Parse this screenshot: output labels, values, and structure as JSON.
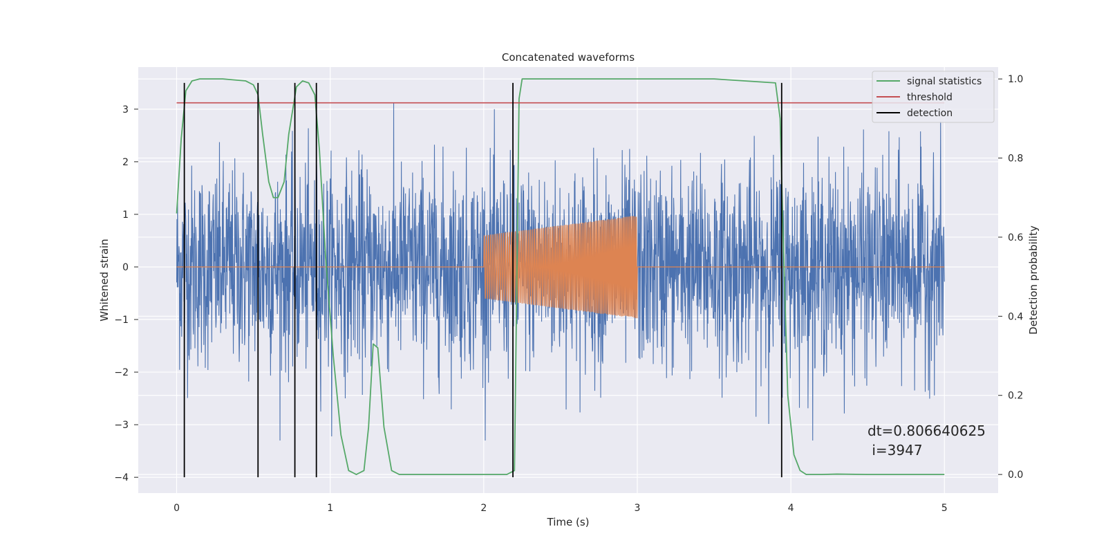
{
  "chart_data": {
    "type": "line",
    "title": "Concatenated waveforms",
    "xlabel": "Time (s)",
    "ylabel_left": "Whitened strain",
    "ylabel_right": "Detection probability",
    "xlim": [
      -0.25,
      5.35
    ],
    "ylim_left": [
      -4.3,
      3.8
    ],
    "ylim_right": [
      -0.047,
      1.03
    ],
    "x_ticks": [
      0,
      1,
      2,
      3,
      4,
      5
    ],
    "x_tick_labels": [
      "0",
      "1",
      "2",
      "3",
      "4",
      "5"
    ],
    "y_left_ticks": [
      -4,
      -3,
      -2,
      -1,
      0,
      1,
      2,
      3
    ],
    "y_left_tick_labels": [
      "−4",
      "−3",
      "−2",
      "−1",
      "0",
      "1",
      "2",
      "3"
    ],
    "y_right_ticks": [
      0.0,
      0.2,
      0.4,
      0.6,
      0.8,
      1.0
    ],
    "y_right_tick_labels": [
      "0.0",
      "0.2",
      "0.4",
      "0.6",
      "0.8",
      "1.0"
    ],
    "grid": true,
    "legend_position": "top-right",
    "series": [
      {
        "name": "",
        "axis": "left",
        "kind": "noise",
        "color": "#4c72b0",
        "x_range": [
          0,
          5
        ],
        "envelope": [
          -3.3,
          3.2
        ]
      },
      {
        "name": "",
        "axis": "left",
        "kind": "chirp",
        "color": "#dd8452",
        "x_range": [
          0,
          5
        ],
        "signal_window": [
          2.0,
          3.0
        ],
        "amplitude_start": 0.6,
        "amplitude_end": 0.98
      },
      {
        "name": "signal statistics",
        "axis": "right",
        "color": "#55a868",
        "x": [
          0.0,
          0.03,
          0.06,
          0.1,
          0.15,
          0.3,
          0.45,
          0.5,
          0.53,
          0.56,
          0.6,
          0.63,
          0.66,
          0.7,
          0.73,
          0.78,
          0.82,
          0.86,
          0.9,
          0.93,
          0.97,
          1.02,
          1.07,
          1.12,
          1.17,
          1.22,
          1.25,
          1.28,
          1.31,
          1.35,
          1.4,
          1.45,
          1.6,
          2.0,
          2.15,
          2.2,
          2.23,
          2.25,
          2.3,
          2.5,
          3.0,
          3.5,
          3.9,
          3.93,
          3.95,
          3.98,
          4.02,
          4.06,
          4.1,
          4.2,
          4.3,
          4.5,
          5.0
        ],
        "y": [
          0.66,
          0.85,
          0.97,
          0.995,
          1.0,
          1.0,
          0.995,
          0.985,
          0.96,
          0.86,
          0.74,
          0.7,
          0.7,
          0.74,
          0.86,
          0.98,
          0.995,
          0.99,
          0.96,
          0.82,
          0.55,
          0.3,
          0.1,
          0.01,
          0.0,
          0.01,
          0.12,
          0.33,
          0.32,
          0.12,
          0.01,
          0.0,
          0.0,
          0.0,
          0.0,
          0.01,
          0.95,
          1.0,
          1.0,
          1.0,
          1.0,
          1.0,
          0.99,
          0.9,
          0.6,
          0.2,
          0.05,
          0.01,
          0.0,
          0.0,
          0.001,
          0.0,
          0.0
        ]
      },
      {
        "name": "threshold",
        "axis": "left",
        "color": "#c44e52",
        "x": [
          0,
          5
        ],
        "y": [
          3.12,
          3.12
        ]
      },
      {
        "name": "detection",
        "axis": "left",
        "color": "#000000",
        "type": "vlines",
        "x": [
          0.05,
          0.53,
          0.77,
          0.91,
          2.19,
          3.94
        ],
        "y_range": [
          -4.0,
          3.5
        ]
      }
    ],
    "annotation": {
      "line1": "dt=0.806640625",
      "line2": " i=3947"
    }
  }
}
